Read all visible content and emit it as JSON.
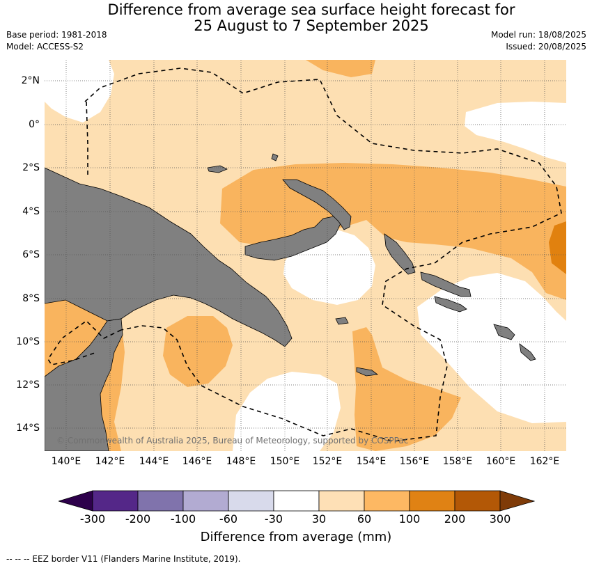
{
  "header": {
    "title_line1": "Difference from average sea surface height forecast for",
    "title_line2": "25 August to 7 September 2025",
    "base_period": "Base period: 1981-2018",
    "model": "Model: ACCESS-S2",
    "model_run": "Model run: 18/08/2025",
    "issued": "Issued: 20/08/2025"
  },
  "map": {
    "latitude_labels": [
      "2°N",
      "0°",
      "2°S",
      "4°S",
      "6°S",
      "8°S",
      "10°S",
      "12°S",
      "14°S"
    ],
    "longitude_labels": [
      "140°E",
      "142°E",
      "144°E",
      "146°E",
      "148°E",
      "150°E",
      "152°E",
      "154°E",
      "156°E",
      "158°E",
      "160°E",
      "162°E"
    ],
    "copyright": "© Commonwealth of Australia 2025, Bureau of Meteorology, supported by COSPPac",
    "colors": {
      "land": "#808080",
      "band_30_60": "#fddfb2",
      "band_60_100": "#f9b45e",
      "band_100_200": "#e1810f"
    }
  },
  "colorbar": {
    "title": "Difference from average (mm)",
    "tick_labels": [
      "-300",
      "-200",
      "-100",
      "-60",
      "-30",
      "30",
      "60",
      "100",
      "200",
      "300"
    ],
    "colors": [
      "#2d004b",
      "#542788",
      "#8073ac",
      "#b2abd2",
      "#d8daeb",
      "#ffffff",
      "#fee0b6",
      "#fdb863",
      "#e08214",
      "#b35806",
      "#7f3b08"
    ]
  },
  "footer": {
    "legend_text": "--  --  -- EEZ border V11 (Flanders Marine Institute, 2019)."
  }
}
